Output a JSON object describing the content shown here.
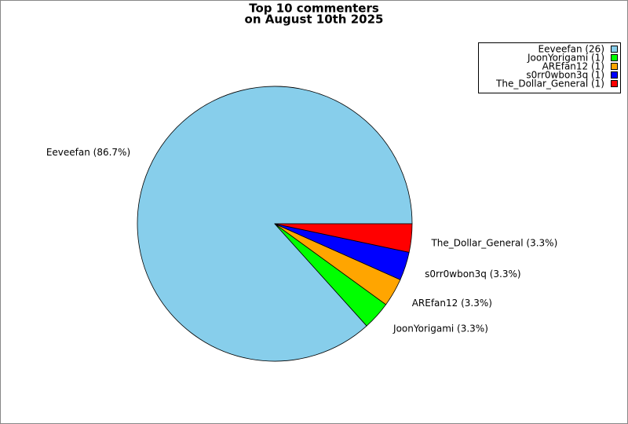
{
  "chart_data": {
    "type": "pie",
    "title": "Top 10 commenters",
    "subtitle": "on August 10th 2025",
    "categories": [
      "Eeveefan",
      "JoonYorigami",
      "AREfan12",
      "s0rr0wbon3q",
      "The_Dollar_General"
    ],
    "values": [
      26,
      1,
      1,
      1,
      1
    ],
    "colors": [
      "#87ceeb",
      "#00ff00",
      "#ffa500",
      "#0000ff",
      "#ff0000"
    ],
    "slice_labels": [
      "Eeveefan (86.7%)",
      "JoonYorigami (3.3%)",
      "AREfan12 (3.3%)",
      "s0rr0wbon3q (3.3%)",
      "The_Dollar_General (3.3%)"
    ],
    "legend_labels": [
      "Eeveefan (26)",
      "JoonYorigami (1)",
      "AREfan12 (1)",
      "s0rr0wbon3q (1)",
      "The_Dollar_General (1)"
    ],
    "legend": "top-right"
  }
}
